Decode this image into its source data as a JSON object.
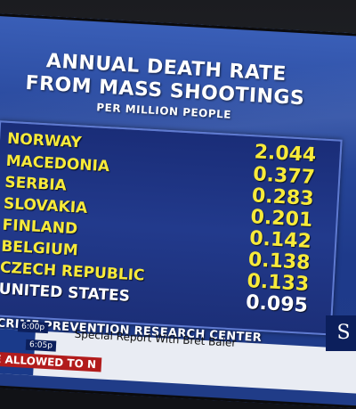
{
  "title_line1": "ANNUAL DEATH RATE",
  "title_line2": "FROM MASS SHOOTINGS",
  "subtitle": "PER MILLION PEOPLE",
  "rows": [
    {
      "country": "NORWAY",
      "value": "2.044"
    },
    {
      "country": "MACEDONIA",
      "value": "0.377"
    },
    {
      "country": "SERBIA",
      "value": "0.283"
    },
    {
      "country": "SLOVAKIA",
      "value": "0.201"
    },
    {
      "country": "FINLAND",
      "value": "0.142"
    },
    {
      "country": "BELGIUM",
      "value": "0.138"
    },
    {
      "country": "CZECH REPUBLIC",
      "value": "0.133"
    },
    {
      "country": "UNITED STATES",
      "value": "0.095"
    }
  ],
  "source": "CRIME PREVENTION RESEARCH CENTER",
  "ticker": {
    "time1": "6:00p",
    "time2": "6:05p",
    "show": "Special Report With Bret Baier",
    "crawl": "BE ALLOWED TO N",
    "logo_text": "S"
  },
  "colors": {
    "highlight": "#f7ea3a",
    "background": "#1e3a8a",
    "text_white": "#ffffff"
  }
}
